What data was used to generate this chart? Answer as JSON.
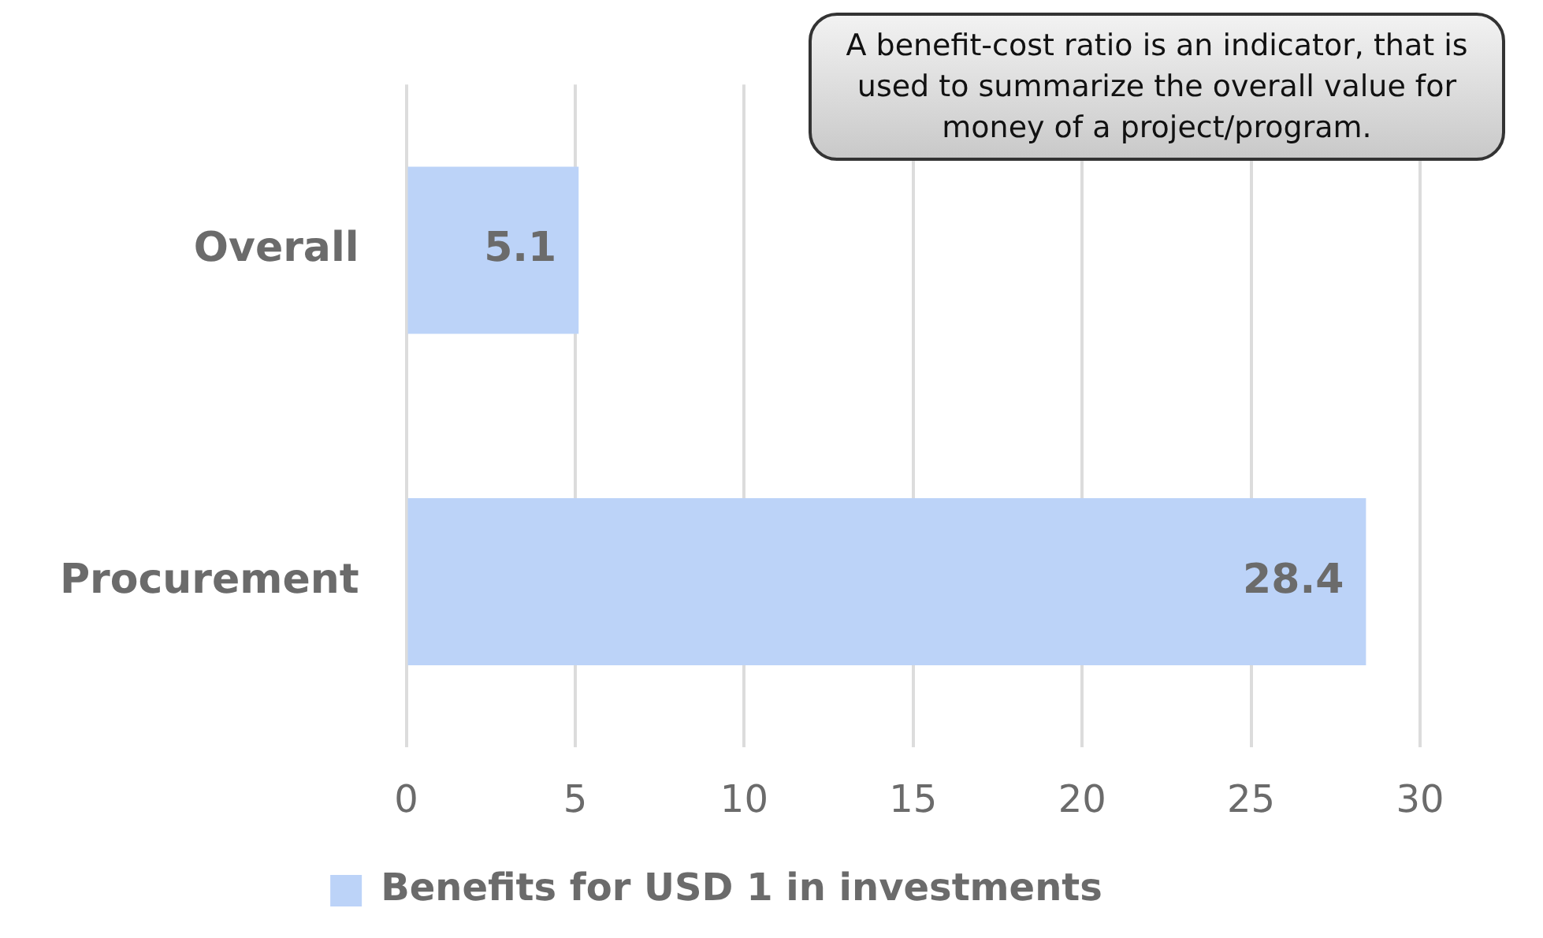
{
  "chart_data": {
    "type": "bar",
    "orientation": "horizontal",
    "categories": [
      "Overall",
      "Procurement"
    ],
    "series": [
      {
        "name": "Benefits for USD 1 in investments",
        "color": "#bcd3f8",
        "values": [
          5.1,
          28.4
        ]
      }
    ],
    "xlim": [
      0,
      30
    ],
    "xticks": [
      0,
      5,
      10,
      15,
      20,
      25,
      30
    ],
    "grid": "x",
    "legend": "bottom",
    "data_labels": true,
    "annotations": [
      "A benefit-cost ratio is an indicator, that is used to summarize the overall value for money of a project/program."
    ]
  }
}
